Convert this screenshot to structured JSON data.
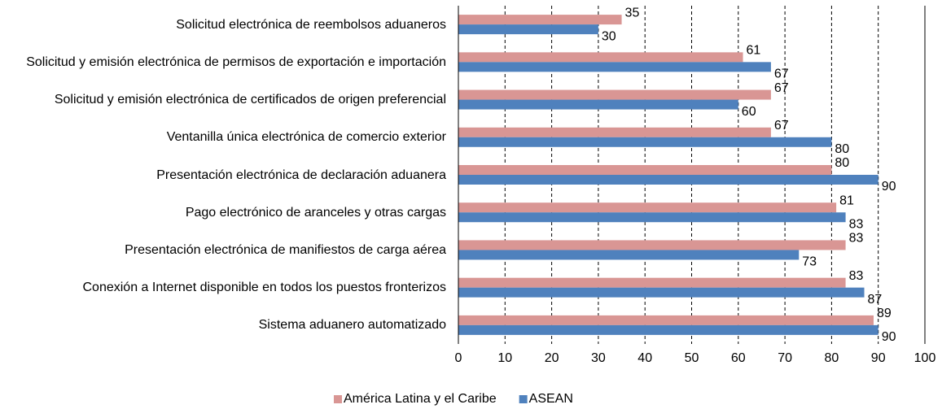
{
  "chart_data": {
    "type": "bar",
    "orientation": "horizontal",
    "categories": [
      "Solicitud electrónica de reembolsos aduaneros",
      "Solicitud y emisión electrónica de permisos de exportación e importación",
      "Solicitud y emisión electrónica de certificados de origen preferencial",
      "Ventanilla única electrónica de comercio exterior",
      "Presentación electrónica de declaración aduanera",
      "Pago electrónico de aranceles y otras cargas",
      "Presentación electrónica de manifiestos de carga aérea",
      "Conexión a Internet disponible en todos los puestos fronterizos",
      "Sistema aduanero automatizado"
    ],
    "series": [
      {
        "name": "América Latina y el Caribe",
        "color": "#d99694",
        "values": [
          35,
          61,
          67,
          67,
          80,
          81,
          83,
          83,
          89
        ]
      },
      {
        "name": "ASEAN",
        "color": "#4f81bd",
        "values": [
          30,
          67,
          60,
          80,
          90,
          83,
          73,
          87,
          90
        ]
      }
    ],
    "xlim": [
      0,
      100
    ],
    "xticks": [
      0,
      10,
      20,
      30,
      40,
      50,
      60,
      70,
      80,
      90,
      100
    ],
    "grid": true,
    "legend": "bottom"
  }
}
